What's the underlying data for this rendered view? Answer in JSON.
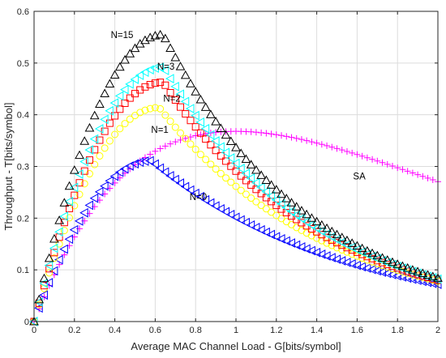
{
  "chart_data": {
    "type": "scatter",
    "xlabel": "Average MAC Channel Load - G[bits/symbol]",
    "ylabel": "Throughput - T[bits/symbol]",
    "xlim": [
      0,
      2
    ],
    "ylim": [
      0,
      0.6
    ],
    "xticks": [
      "0",
      "0.2",
      "0.4",
      "0.6",
      "0.8",
      "1",
      "1.2",
      "1.4",
      "1.6",
      "1.8",
      "2"
    ],
    "yticks": [
      "0",
      "0.1",
      "0.2",
      "0.3",
      "0.4",
      "0.5",
      "0.6"
    ],
    "grid": true,
    "legend": "none",
    "series": [
      {
        "name": "SA",
        "marker": "plus",
        "color": "#ff00ff",
        "type": "sa",
        "peak_x": 1.0,
        "peak_y": 0.368,
        "label_at": [
          1.58,
          0.275
        ]
      },
      {
        "name": "N=0",
        "marker": "triangle-left",
        "color": "#0000ff",
        "type": "crdsa",
        "peak_x": 0.58,
        "peak_y": 0.311,
        "tail": 0.072,
        "label_at": [
          0.77,
          0.235
        ]
      },
      {
        "name": "N=1",
        "marker": "circle",
        "color": "#ffff00",
        "type": "crdsa",
        "peak_x": 0.62,
        "peak_y": 0.414,
        "tail": 0.078,
        "label_at": [
          0.58,
          0.365
        ]
      },
      {
        "name": "N=2",
        "marker": "square",
        "color": "#ff0000",
        "type": "crdsa",
        "peak_x": 0.64,
        "peak_y": 0.463,
        "tail": 0.08,
        "label_at": [
          0.64,
          0.425
        ]
      },
      {
        "name": "N=3",
        "marker": "triangle-left",
        "color": "#00ffff",
        "type": "crdsa",
        "peak_x": 0.64,
        "peak_y": 0.492,
        "tail": 0.082,
        "label_at": [
          0.61,
          0.487
        ]
      },
      {
        "name": "N=15",
        "marker": "triangle-up",
        "color": "#000000",
        "type": "crdsa",
        "peak_x": 0.64,
        "peak_y": 0.555,
        "tail": 0.084,
        "label_at": [
          0.38,
          0.548
        ]
      }
    ]
  }
}
